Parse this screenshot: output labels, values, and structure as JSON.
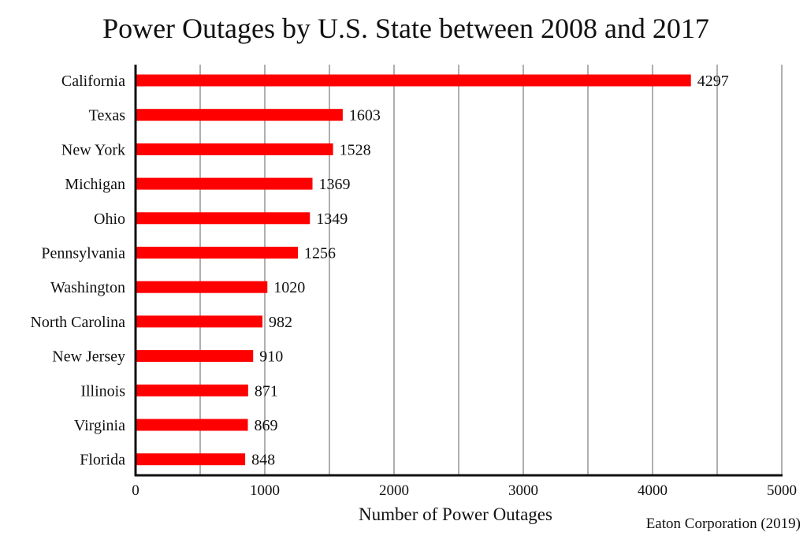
{
  "chart_data": {
    "type": "bar",
    "orientation": "horizontal",
    "title": "Power Outages by U.S. State between 2008 and 2017",
    "xlabel": "Number of Power Outages",
    "ylabel": "",
    "source": "Eaton Corporation (2019)",
    "categories": [
      "California",
      "Texas",
      "New York",
      "Michigan",
      "Ohio",
      "Pennsylvania",
      "Washington",
      "North Carolina",
      "New Jersey",
      "Illinois",
      "Virginia",
      "Florida"
    ],
    "values": [
      4297,
      1603,
      1528,
      1369,
      1349,
      1256,
      1020,
      982,
      910,
      871,
      869,
      848
    ],
    "xlim": [
      0,
      5000
    ],
    "xticks": [
      0,
      1000,
      2000,
      3000,
      4000,
      5000
    ],
    "gridlines": [
      500,
      1000,
      1500,
      2000,
      2500,
      3000,
      3500,
      4000,
      4500,
      5000
    ],
    "grid": true,
    "legend": "none",
    "bar_color": "#ff0000"
  }
}
